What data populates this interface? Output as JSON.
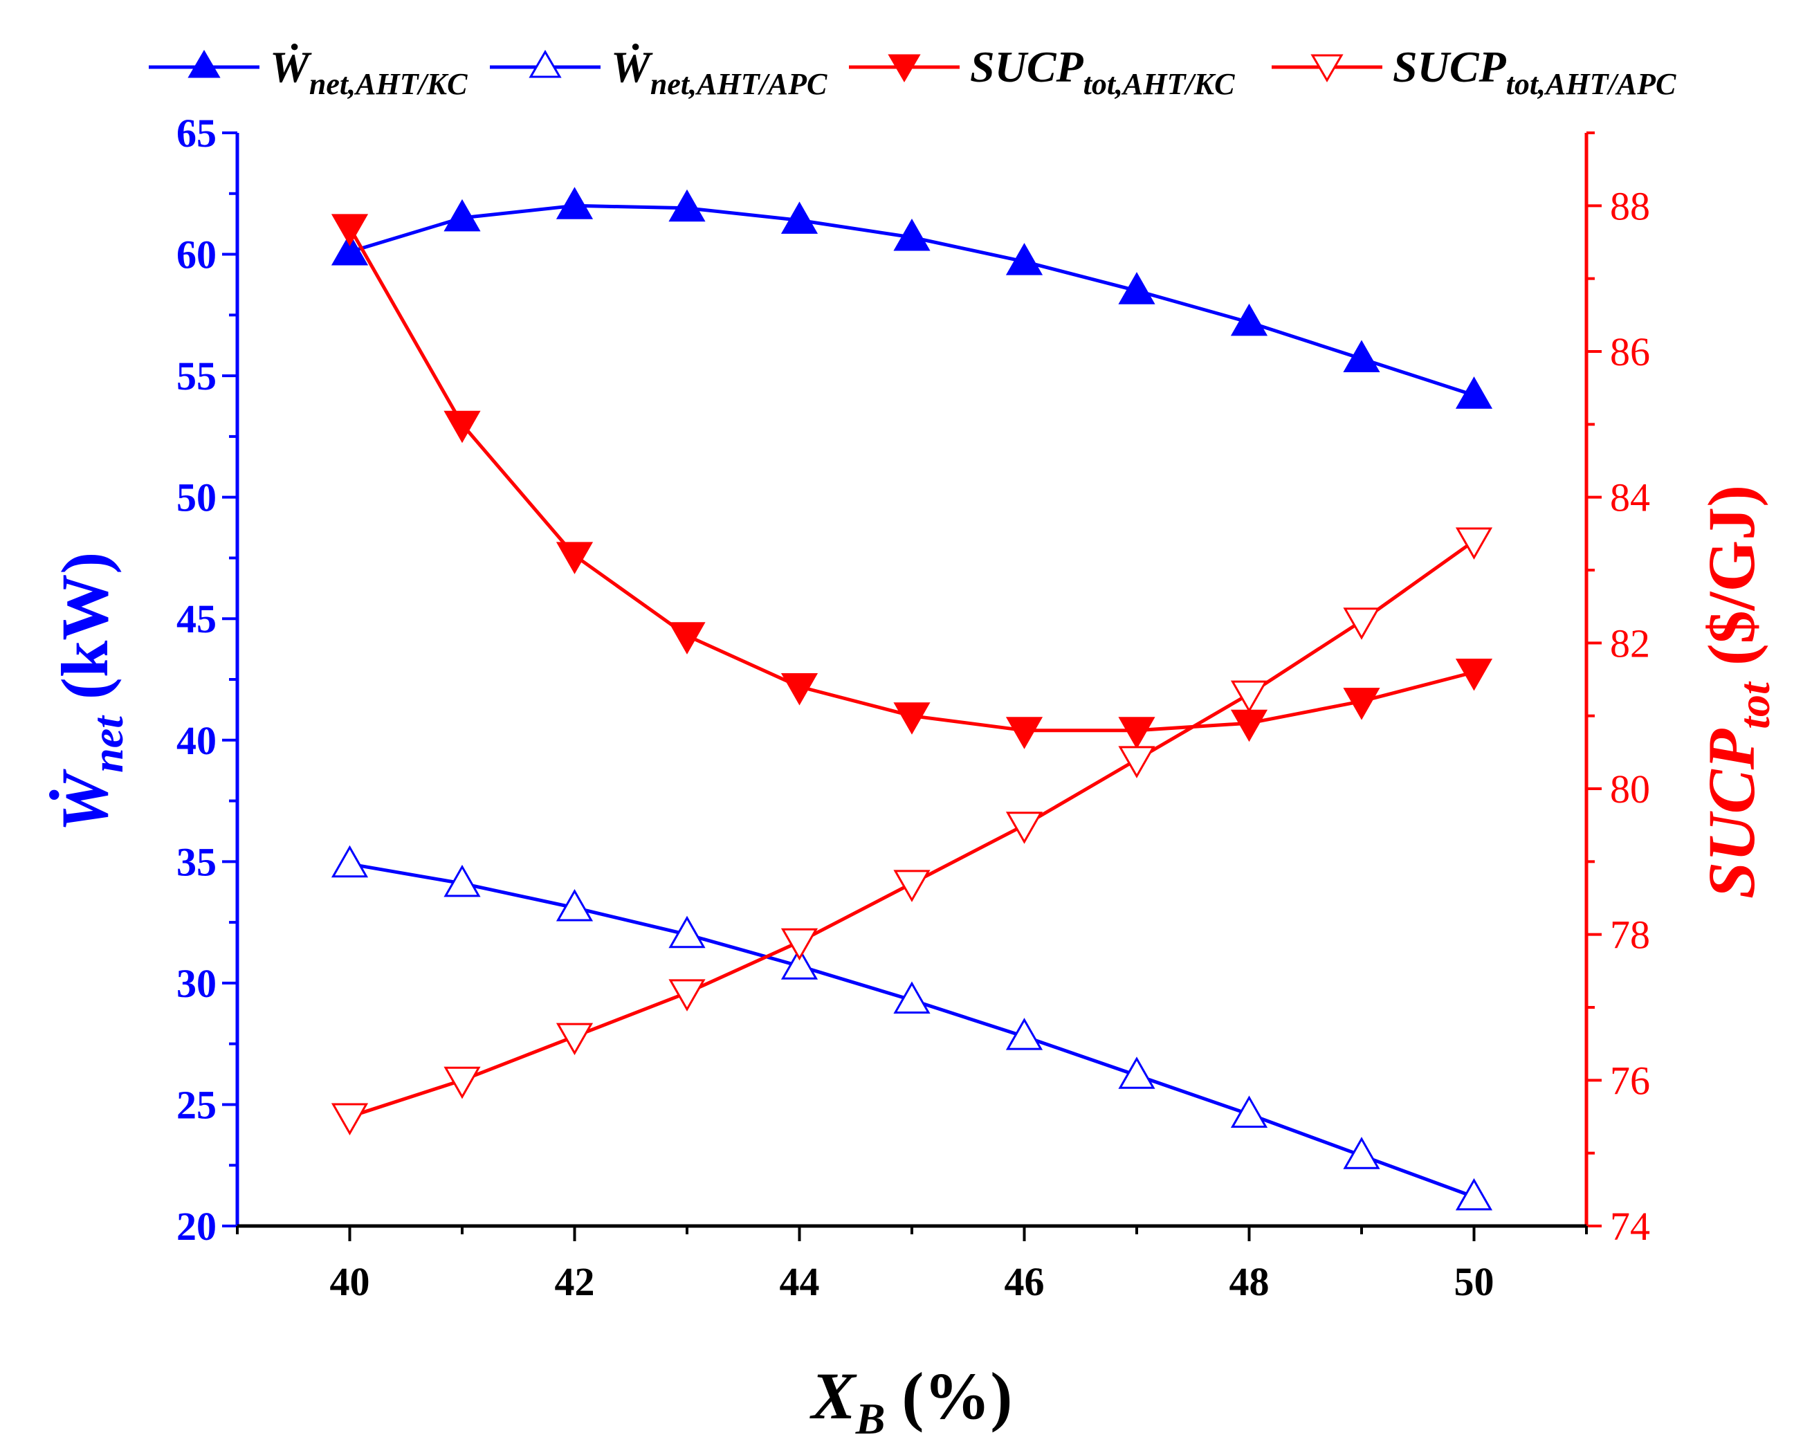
{
  "colors": {
    "blue": "#0000ff",
    "red": "#ff0000",
    "axis": "#000000"
  },
  "chart_data": {
    "type": "line",
    "x": [
      40,
      41,
      42,
      43,
      44,
      45,
      46,
      47,
      48,
      49,
      50
    ],
    "xlabel": {
      "main": "X",
      "sub": "B",
      "unit": " (%)"
    },
    "xlim": [
      39,
      51
    ],
    "x_ticks": [
      "40",
      "42",
      "44",
      "46",
      "48",
      "50"
    ],
    "y_left": {
      "label": {
        "main": "Ẇ",
        "sub": "net",
        "unit": " (kW)"
      },
      "lim": [
        20,
        65
      ],
      "ticks": [
        "20",
        "25",
        "30",
        "35",
        "40",
        "45",
        "50",
        "55",
        "60",
        "65"
      ],
      "color": "#0000ff"
    },
    "y_right": {
      "label": {
        "main": "SUCP",
        "sub": "tot",
        "unit": " ($/GJ)"
      },
      "lim": [
        74,
        89
      ],
      "ticks": [
        "74",
        "76",
        "78",
        "80",
        "82",
        "84",
        "86",
        "88"
      ],
      "color": "#ff0000"
    },
    "series": [
      {
        "name": "Ẇ",
        "sub": "net,AHT/KC",
        "axis": "left",
        "color": "#0000ff",
        "marker": "triangle-up",
        "filled": true,
        "values": [
          60.1,
          61.5,
          62.0,
          61.9,
          61.4,
          60.7,
          59.7,
          58.5,
          57.2,
          55.7,
          54.2
        ]
      },
      {
        "name": "Ẇ",
        "sub": "net,AHT/APC",
        "axis": "left",
        "color": "#0000ff",
        "marker": "triangle-up",
        "filled": false,
        "values": [
          34.9,
          34.1,
          33.1,
          32.0,
          30.7,
          29.3,
          27.8,
          26.2,
          24.6,
          22.9,
          21.2
        ]
      },
      {
        "name": "SUCP",
        "sub": "tot,AHT/KC",
        "axis": "right",
        "color": "#ff0000",
        "marker": "triangle-down",
        "filled": true,
        "values": [
          87.7,
          85.0,
          83.2,
          82.1,
          81.4,
          81.0,
          80.8,
          80.8,
          80.9,
          81.2,
          81.6
        ]
      },
      {
        "name": "SUCP",
        "sub": "tot,AHT/APC",
        "axis": "right",
        "color": "#ff0000",
        "marker": "triangle-down",
        "filled": false,
        "values": [
          75.5,
          76.0,
          76.6,
          77.2,
          77.9,
          78.7,
          79.5,
          80.4,
          81.3,
          82.3,
          83.4
        ]
      }
    ]
  }
}
